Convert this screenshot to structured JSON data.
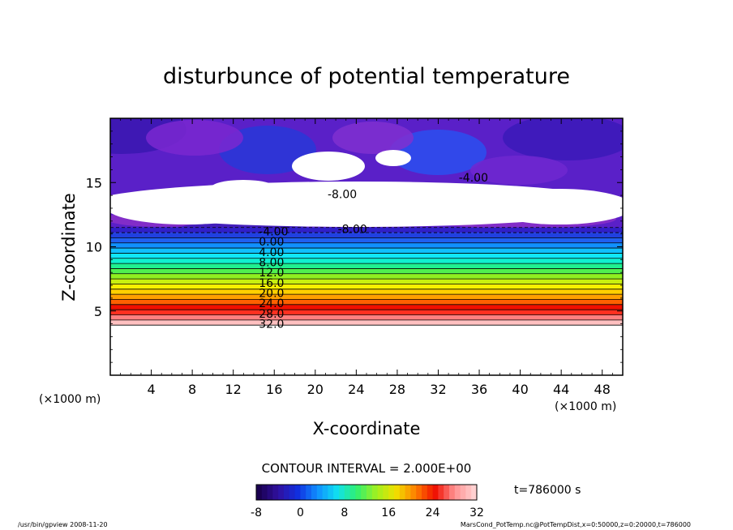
{
  "chart_data": {
    "type": "heatmap",
    "title": "disturbunce of potential temperature",
    "xlabel": "X-coordinate",
    "ylabel": "Z-coordinate",
    "x_unit": "(×1000 m)",
    "y_unit": "(×1000 m)",
    "xlim": [
      0,
      50
    ],
    "ylim": [
      0,
      20
    ],
    "x_ticks": [
      4,
      8,
      12,
      16,
      20,
      24,
      28,
      32,
      36,
      40,
      44,
      48
    ],
    "y_ticks": [
      5,
      10,
      15
    ],
    "contour_interval_label": "CONTOUR INTERVAL = 2.000E+00",
    "time_label": "t=786000 s",
    "colorbar": {
      "range": [
        -8,
        32
      ],
      "ticks": [
        -8,
        0,
        8,
        16,
        24,
        32
      ],
      "colors": [
        "#1a0050",
        "#3010a0",
        "#1030e0",
        "#1090ff",
        "#10e0f0",
        "#30f070",
        "#a0f020",
        "#f0e000",
        "#ff8000",
        "#f01000",
        "#ff9090",
        "#ffd0d0"
      ]
    },
    "bands": [
      {
        "z0": 3.9,
        "z1": 4.3,
        "value": 32,
        "color": "#ffc0c0"
      },
      {
        "z0": 4.3,
        "z1": 4.7,
        "value": 30,
        "color": "#ff8080"
      },
      {
        "z0": 4.7,
        "z1": 5.1,
        "value": 28,
        "color": "#ff3020"
      },
      {
        "z0": 5.1,
        "z1": 5.5,
        "value": 26,
        "color": "#f01000"
      },
      {
        "z0": 5.5,
        "z1": 5.9,
        "value": 24,
        "color": "#ff6000"
      },
      {
        "z0": 5.9,
        "z1": 6.3,
        "value": 22,
        "color": "#ffa000"
      },
      {
        "z0": 6.3,
        "z1": 6.7,
        "value": 20,
        "color": "#ffd000"
      },
      {
        "z0": 6.7,
        "z1": 7.1,
        "value": 18,
        "color": "#f8f000"
      },
      {
        "z0": 7.1,
        "z1": 7.5,
        "value": 16,
        "color": "#c8f010"
      },
      {
        "z0": 7.5,
        "z1": 7.9,
        "value": 14,
        "color": "#90f020"
      },
      {
        "z0": 7.9,
        "z1": 8.3,
        "value": 12,
        "color": "#50f050"
      },
      {
        "z0": 8.3,
        "z1": 8.7,
        "value": 10,
        "color": "#20f090"
      },
      {
        "z0": 8.7,
        "z1": 9.1,
        "value": 8,
        "color": "#10f0d0"
      },
      {
        "z0": 9.1,
        "z1": 9.5,
        "value": 6,
        "color": "#10e8f8"
      },
      {
        "z0": 9.5,
        "z1": 9.9,
        "value": 4,
        "color": "#10c0ff"
      },
      {
        "z0": 9.9,
        "z1": 10.3,
        "value": 2,
        "color": "#1090ff"
      },
      {
        "z0": 10.3,
        "z1": 10.7,
        "value": 0,
        "color": "#2060f0"
      },
      {
        "z0": 10.7,
        "z1": 11.1,
        "value": -2,
        "color": "#2040e0"
      },
      {
        "z0": 11.1,
        "z1": 11.5,
        "value": -4,
        "color": "#3020c8"
      }
    ],
    "contour_labels": [
      {
        "x": 14.5,
        "z": 4.0,
        "text": "32.0"
      },
      {
        "x": 14.5,
        "z": 4.8,
        "text": "28.0"
      },
      {
        "x": 14.5,
        "z": 5.6,
        "text": "24.0"
      },
      {
        "x": 14.5,
        "z": 6.4,
        "text": "20.0"
      },
      {
        "x": 14.5,
        "z": 7.2,
        "text": "16.0"
      },
      {
        "x": 14.5,
        "z": 8.0,
        "text": "12.0"
      },
      {
        "x": 14.5,
        "z": 8.8,
        "text": "8.00"
      },
      {
        "x": 14.5,
        "z": 9.6,
        "text": "4.00"
      },
      {
        "x": 14.5,
        "z": 10.4,
        "text": "0.00"
      },
      {
        "x": 14.5,
        "z": 11.2,
        "text": "-4.00"
      },
      {
        "x": 22.2,
        "z": 11.4,
        "text": "-8.00"
      },
      {
        "x": 21.2,
        "z": 14.1,
        "text": "-8.00"
      },
      {
        "x": 34.0,
        "z": 15.4,
        "text": "-4.00"
      }
    ],
    "footer_left": "/usr/bin/gpview   2008-11-20",
    "footer_right": "MarsCond_PotTemp.nc@PotTempDist,x=0:50000,z=0:20000,t=786000"
  }
}
